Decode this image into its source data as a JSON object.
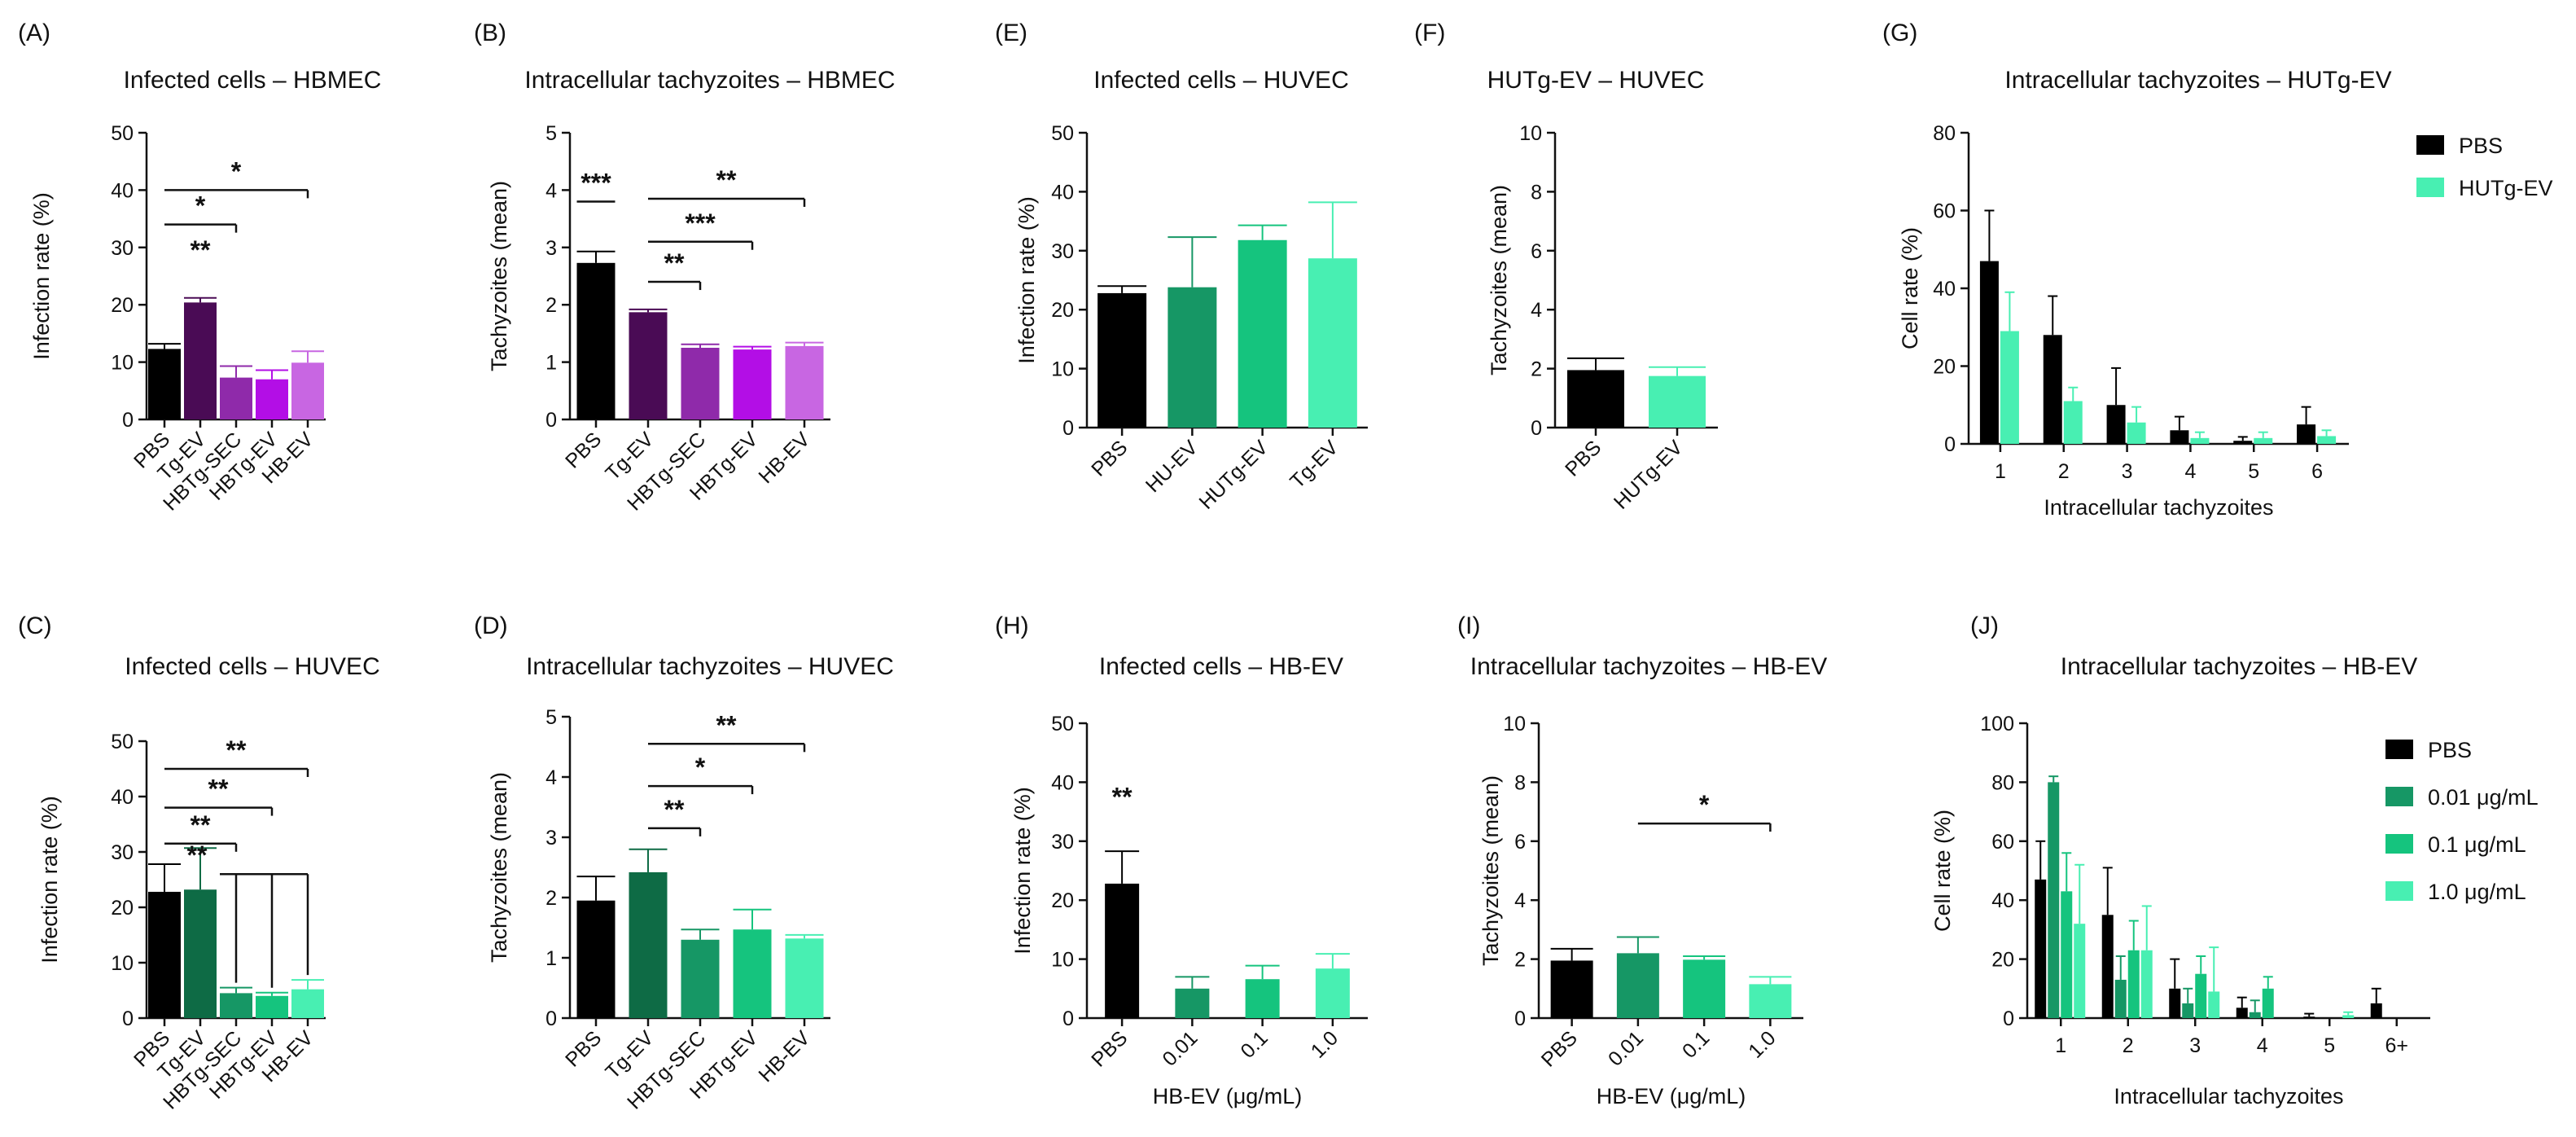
{
  "chart_data": [
    {
      "panel": "(A)",
      "type": "bar",
      "title": "Infected cells – HBMEC",
      "ylabel": "Infection rate (%)",
      "xlabel": "",
      "ylim": [
        0,
        50
      ],
      "yticks": [
        0,
        10,
        20,
        30,
        40,
        50
      ],
      "categories": [
        "PBS",
        "Tg-EV",
        "HBTg-SEC",
        "HBTg-EV",
        "HB-EV"
      ],
      "values": [
        12.3,
        20.4,
        7.3,
        7.0,
        9.9
      ],
      "errors": [
        0.9,
        0.8,
        2.0,
        1.6,
        2.0
      ],
      "colors": [
        "#000000",
        "#4a0b55",
        "#8f2aaa",
        "#b30ee6",
        "#c866e2"
      ],
      "significance": [
        {
          "from": 0,
          "to": 4,
          "y": 40,
          "label": "*"
        },
        {
          "from": 0,
          "to": 2,
          "y": 34,
          "label": "*"
        },
        {
          "at": 1,
          "y": 28,
          "label": "**"
        }
      ]
    },
    {
      "panel": "(B)",
      "type": "bar",
      "title": "Intracellular tachyzoites – HBMEC",
      "ylabel": "Tachyzoites (mean)",
      "xlabel": "",
      "ylim": [
        0,
        5
      ],
      "yticks": [
        0,
        1,
        2,
        3,
        4,
        5
      ],
      "categories": [
        "PBS",
        "Tg-EV",
        "HBTg-SEC",
        "HBTg-EV",
        "HB-EV"
      ],
      "values": [
        2.73,
        1.87,
        1.25,
        1.22,
        1.28
      ],
      "errors": [
        0.2,
        0.05,
        0.06,
        0.05,
        0.06
      ],
      "colors": [
        "#000000",
        "#4a0b55",
        "#8f2aaa",
        "#b30ee6",
        "#c866e2"
      ],
      "significance": [
        {
          "from": 0,
          "to": 0,
          "y": 3.8,
          "label": "***"
        },
        {
          "from": 1,
          "to": 4,
          "y": 3.85,
          "label": "**"
        },
        {
          "from": 1,
          "to": 3,
          "y": 3.1,
          "label": "***"
        },
        {
          "from": 1,
          "to": 2,
          "y": 2.4,
          "label": "**"
        }
      ]
    },
    {
      "panel": "(E)",
      "type": "bar",
      "title": "Infected cells – HUVEC",
      "ylabel": "Infection rate (%)",
      "xlabel": "",
      "ylim": [
        0,
        50
      ],
      "yticks": [
        0,
        10,
        20,
        30,
        40,
        50
      ],
      "categories": [
        "PBS",
        "HU-EV",
        "HUTg-EV",
        "Tg-EV"
      ],
      "values": [
        22.8,
        23.8,
        31.8,
        28.7
      ],
      "errors": [
        1.2,
        8.5,
        2.5,
        9.5
      ],
      "colors": [
        "#000000",
        "#169765",
        "#15c47e",
        "#48efb2"
      ],
      "significance": []
    },
    {
      "panel": "(F)",
      "type": "bar",
      "title": "HUTg-EV – HUVEC",
      "ylabel": "Tachyzoites (mean)",
      "xlabel": "",
      "ylim": [
        0,
        10
      ],
      "yticks": [
        0,
        2,
        4,
        6,
        8,
        10
      ],
      "categories": [
        "PBS",
        "HUTg-EV"
      ],
      "values": [
        1.95,
        1.75
      ],
      "errors": [
        0.4,
        0.3
      ],
      "colors": [
        "#000000",
        "#48efb2"
      ],
      "significance": []
    },
    {
      "panel": "(G)",
      "type": "bar",
      "title": "Intracellular tachyzoites – HUTg-EV",
      "ylabel": "Cell rate (%)",
      "xlabel": "Intracellular tachyzoites",
      "ylim": [
        0,
        80
      ],
      "yticks": [
        0,
        20,
        40,
        60,
        80
      ],
      "categories": [
        "1",
        "2",
        "3",
        "4",
        "5",
        "6"
      ],
      "series": [
        {
          "name": "PBS",
          "color": "#000000",
          "values": [
            47,
            28,
            10,
            3.5,
            0.8,
            5
          ],
          "errors": [
            13,
            10,
            9.5,
            3.5,
            1,
            4.5
          ]
        },
        {
          "name": "HUTg-EV",
          "color": "#48efb2",
          "values": [
            29,
            11,
            5.5,
            1.5,
            1.5,
            2
          ],
          "errors": [
            10,
            3.5,
            4,
            1.5,
            1.5,
            1.5
          ]
        }
      ],
      "legend": "top-right"
    },
    {
      "panel": "(C)",
      "type": "bar",
      "title": "Infected cells – HUVEC",
      "ylabel": "Infection rate (%)",
      "xlabel": "",
      "ylim": [
        0,
        50
      ],
      "yticks": [
        0,
        10,
        20,
        30,
        40,
        50
      ],
      "categories": [
        "PBS",
        "Tg-EV",
        "HBTg-SEC",
        "HBTg-EV",
        "HB-EV"
      ],
      "values": [
        22.8,
        23.2,
        4.5,
        4.0,
        5.2
      ],
      "errors": [
        5.0,
        7.5,
        1.0,
        0.6,
        1.7
      ],
      "colors": [
        "#000000",
        "#0e6b45",
        "#169765",
        "#15c47e",
        "#48efb2"
      ],
      "significance": [
        {
          "from": 0,
          "to": 4,
          "y": 45,
          "label": "**"
        },
        {
          "from": 0,
          "to": 3,
          "y": 38,
          "label": "**"
        },
        {
          "from": 0,
          "to": 2,
          "y": 31.5,
          "label": "**"
        },
        {
          "from": 1,
          "to": 4,
          "y": 26,
          "label": "**",
          "drops": [
            2,
            3,
            4
          ]
        }
      ]
    },
    {
      "panel": "(D)",
      "type": "bar",
      "title": "Intracellular tachyzoites – HUVEC",
      "ylabel": "Tachyzoites (mean)",
      "xlabel": "",
      "ylim": [
        0,
        5
      ],
      "yticks": [
        0,
        1,
        2,
        3,
        4,
        5
      ],
      "categories": [
        "PBS",
        "Tg-EV",
        "HBTg-SEC",
        "HBTg-EV",
        "HB-EV"
      ],
      "values": [
        1.95,
        2.42,
        1.3,
        1.47,
        1.32
      ],
      "errors": [
        0.4,
        0.38,
        0.17,
        0.33,
        0.06
      ],
      "colors": [
        "#000000",
        "#0e6b45",
        "#169765",
        "#15c47e",
        "#48efb2"
      ],
      "significance": [
        {
          "from": 1,
          "to": 4,
          "y": 4.55,
          "label": "**"
        },
        {
          "from": 1,
          "to": 3,
          "y": 3.85,
          "label": "*"
        },
        {
          "from": 1,
          "to": 2,
          "y": 3.15,
          "label": "**"
        }
      ]
    },
    {
      "panel": "(H)",
      "type": "bar",
      "title": "Infected cells – HB-EV",
      "ylabel": "Infection rate (%)",
      "xlabel": "HB-EV (μg/mL)",
      "ylim": [
        0,
        50
      ],
      "yticks": [
        0,
        10,
        20,
        30,
        40,
        50
      ],
      "categories": [
        "PBS",
        "0.01",
        "0.1",
        "1.0"
      ],
      "values": [
        22.8,
        5.0,
        6.6,
        8.4
      ],
      "errors": [
        5.5,
        2.0,
        2.3,
        2.5
      ],
      "colors": [
        "#000000",
        "#169765",
        "#15c47e",
        "#48efb2"
      ],
      "significance": [
        {
          "at": 0,
          "y": 36,
          "label": "**"
        }
      ]
    },
    {
      "panel": "(I)",
      "type": "bar",
      "title": "Intracellular tachyzoites – HB-EV",
      "ylabel": "Tachyzoites (mean)",
      "xlabel": "HB-EV (μg/mL)",
      "ylim": [
        0,
        10
      ],
      "yticks": [
        0,
        2,
        4,
        6,
        8,
        10
      ],
      "categories": [
        "PBS",
        "0.01",
        "0.1",
        "1.0"
      ],
      "values": [
        1.95,
        2.2,
        1.98,
        1.15
      ],
      "errors": [
        0.4,
        0.55,
        0.12,
        0.25
      ],
      "colors": [
        "#000000",
        "#169765",
        "#15c47e",
        "#48efb2"
      ],
      "significance": [
        {
          "from": 1,
          "to": 3,
          "y": 6.6,
          "label": "*"
        }
      ]
    },
    {
      "panel": "(J)",
      "type": "bar",
      "title": "Intracellular tachyzoites – HB-EV",
      "ylabel": "Cell rate (%)",
      "xlabel": "Intracellular tachyzoites",
      "ylim": [
        0,
        100
      ],
      "yticks": [
        0,
        20,
        40,
        60,
        80,
        100
      ],
      "categories": [
        "1",
        "2",
        "3",
        "4",
        "5",
        "6+"
      ],
      "series": [
        {
          "name": "PBS",
          "color": "#000000",
          "values": [
            47,
            35,
            10,
            3.5,
            0.5,
            5
          ],
          "errors": [
            13,
            16,
            10,
            3.5,
            1,
            5
          ]
        },
        {
          "name": "0.01 μg/mL",
          "color": "#169765",
          "values": [
            80,
            13,
            5,
            2,
            0,
            0
          ],
          "errors": [
            2,
            8,
            5,
            4,
            0,
            0
          ]
        },
        {
          "name": "0.1 μg/mL",
          "color": "#15c47e",
          "values": [
            43,
            23,
            15,
            10,
            0,
            0
          ],
          "errors": [
            13,
            10,
            6,
            4,
            0,
            0
          ]
        },
        {
          "name": "1.0 μg/mL",
          "color": "#48efb2",
          "values": [
            32,
            23,
            9,
            0,
            1,
            0
          ],
          "errors": [
            20,
            15,
            15,
            0,
            1,
            0
          ]
        }
      ],
      "legend": "right"
    }
  ]
}
